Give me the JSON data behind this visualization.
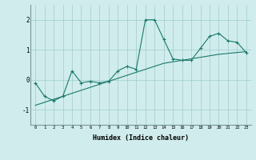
{
  "x": [
    0,
    1,
    2,
    3,
    4,
    5,
    6,
    7,
    8,
    9,
    10,
    11,
    12,
    13,
    14,
    15,
    16,
    17,
    18,
    19,
    20,
    21,
    22,
    23
  ],
  "y_main": [
    -0.1,
    -0.55,
    -0.7,
    -0.55,
    0.3,
    -0.1,
    -0.05,
    -0.1,
    -0.05,
    0.3,
    0.45,
    0.35,
    2.0,
    2.0,
    1.35,
    0.7,
    0.65,
    0.65,
    1.05,
    1.45,
    1.55,
    1.3,
    1.25,
    0.9
  ],
  "y_trend": [
    -0.85,
    -0.75,
    -0.65,
    -0.55,
    -0.45,
    -0.35,
    -0.25,
    -0.15,
    -0.05,
    0.05,
    0.15,
    0.25,
    0.35,
    0.45,
    0.55,
    0.6,
    0.65,
    0.7,
    0.75,
    0.8,
    0.85,
    0.88,
    0.91,
    0.94
  ],
  "color": "#1a7a6a",
  "bg_color": "#d0ecec",
  "grid_color": "#a0cccc",
  "xlabel": "Humidex (Indice chaleur)",
  "ylim": [
    -1.5,
    2.5
  ],
  "xlim": [
    -0.5,
    23.5
  ],
  "yticks": [
    -1,
    0,
    1,
    2
  ],
  "xticks": [
    0,
    1,
    2,
    3,
    4,
    5,
    6,
    7,
    8,
    9,
    10,
    11,
    12,
    13,
    14,
    15,
    16,
    17,
    18,
    19,
    20,
    21,
    22,
    23
  ]
}
